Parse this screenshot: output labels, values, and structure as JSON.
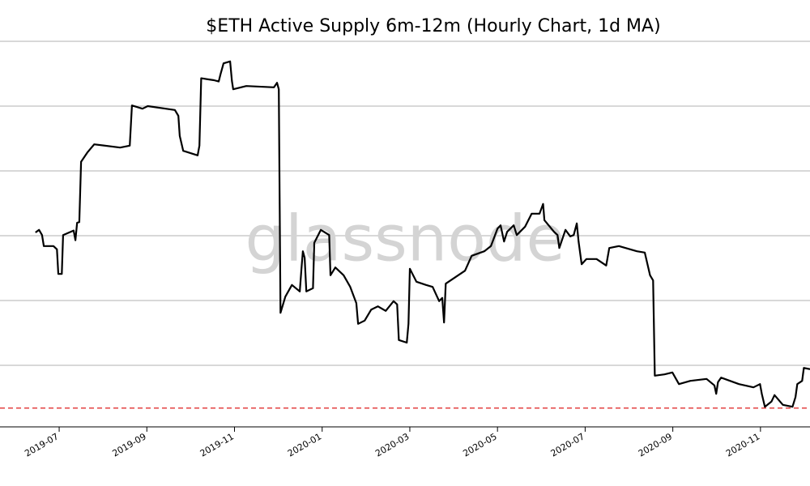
{
  "chart_data": {
    "type": "line",
    "title": "$ETH Active Supply 6m-12m (Hourly Chart, 1d MA)",
    "watermark": "glassnode",
    "x": [
      5.46,
      5.54,
      5.61,
      5.65,
      5.87,
      5.95,
      5.98,
      6.06,
      6.09,
      6.33,
      6.37,
      6.41,
      6.46,
      6.5,
      6.65,
      6.8,
      7.39,
      7.61,
      7.66,
      7.9,
      8.02,
      8.64,
      8.72,
      8.75,
      8.83,
      9.16,
      9.2,
      9.24,
      9.53,
      9.64,
      9.68,
      9.75,
      9.9,
      9.94,
      9.97,
      10.27,
      10.9,
      10.97,
      11.01,
      11.05,
      11.16,
      11.31,
      11.49,
      11.53,
      11.56,
      11.6,
      11.64,
      11.79,
      11.82,
      11.97,
      12.16,
      12.19,
      12.3,
      12.49,
      12.64,
      12.78,
      12.82,
      12.97,
      13.12,
      13.27,
      13.45,
      13.63,
      13.71,
      13.75,
      13.93,
      13.97,
      14.0,
      14.15,
      14.37,
      14.52,
      14.67,
      14.74,
      14.78,
      14.82,
      15.04,
      15.26,
      15.41,
      15.7,
      15.85,
      16.0,
      16.07,
      16.15,
      16.22,
      16.37,
      16.44,
      16.63,
      16.78,
      16.96,
      17.04,
      17.07,
      17.29,
      17.37,
      17.41,
      17.55,
      17.66,
      17.74,
      17.81,
      17.85,
      17.92,
      18.03,
      18.26,
      18.48,
      18.55,
      18.77,
      19.18,
      19.36,
      19.48,
      19.55,
      19.59,
      19.81,
      19.99,
      20.14,
      20.4,
      20.77,
      20.95,
      20.99,
      21.03,
      21.1,
      21.51,
      21.84,
      21.99,
      22.03,
      22.1,
      22.25,
      22.32,
      22.51,
      22.73,
      22.8,
      22.84,
      22.95,
      22.99,
      23.13
    ],
    "series": [
      {
        "color": "#000000",
        "values": [
          3.05,
          3.09,
          3.01,
          2.84,
          2.84,
          2.79,
          2.41,
          2.41,
          3.01,
          3.08,
          2.93,
          3.2,
          3.21,
          4.14,
          4.29,
          4.41,
          4.36,
          4.39,
          5.01,
          4.96,
          5.0,
          4.94,
          4.85,
          4.54,
          4.31,
          4.24,
          4.39,
          5.43,
          5.4,
          5.38,
          5.49,
          5.66,
          5.69,
          5.39,
          5.26,
          5.31,
          5.29,
          5.36,
          5.26,
          1.81,
          2.06,
          2.24,
          2.14,
          2.51,
          2.76,
          2.66,
          2.14,
          2.19,
          2.89,
          3.09,
          3.01,
          2.39,
          2.51,
          2.39,
          2.21,
          1.96,
          1.64,
          1.69,
          1.86,
          1.91,
          1.84,
          1.99,
          1.94,
          1.39,
          1.35,
          1.64,
          2.49,
          2.29,
          2.24,
          2.21,
          1.99,
          2.04,
          1.66,
          2.26,
          2.36,
          2.46,
          2.69,
          2.76,
          2.84,
          3.11,
          3.16,
          2.91,
          3.06,
          3.16,
          3.01,
          3.14,
          3.34,
          3.34,
          3.49,
          3.24,
          3.06,
          3.01,
          2.81,
          3.09,
          2.99,
          3.01,
          3.19,
          2.91,
          2.56,
          2.64,
          2.64,
          2.54,
          2.81,
          2.84,
          2.76,
          2.74,
          2.39,
          2.31,
          0.84,
          0.86,
          0.89,
          0.71,
          0.76,
          0.79,
          0.69,
          0.56,
          0.74,
          0.81,
          0.71,
          0.66,
          0.71,
          0.56,
          0.36,
          0.44,
          0.54,
          0.39,
          0.36,
          0.51,
          0.71,
          0.76,
          0.96,
          0.94
        ]
      }
    ],
    "hline": {
      "value": 0.34,
      "color": "#e03030"
    },
    "xlim": [
      4.65,
      23.13
    ],
    "xticks": [
      {
        "value": 6,
        "label": "2019-07"
      },
      {
        "value": 8,
        "label": "2019-09"
      },
      {
        "value": 10,
        "label": "2019-11"
      },
      {
        "value": 12,
        "label": "2020-01"
      },
      {
        "value": 14,
        "label": "2020-03"
      },
      {
        "value": 16,
        "label": "2020-05"
      },
      {
        "value": 18,
        "label": "2020-07"
      },
      {
        "value": 20,
        "label": "2020-09"
      },
      {
        "value": 22,
        "label": "2020-11"
      }
    ],
    "ylim": [
      0.05,
      6
    ],
    "yticks": [
      1,
      2,
      3,
      4,
      5,
      6
    ],
    "grid": true
  }
}
